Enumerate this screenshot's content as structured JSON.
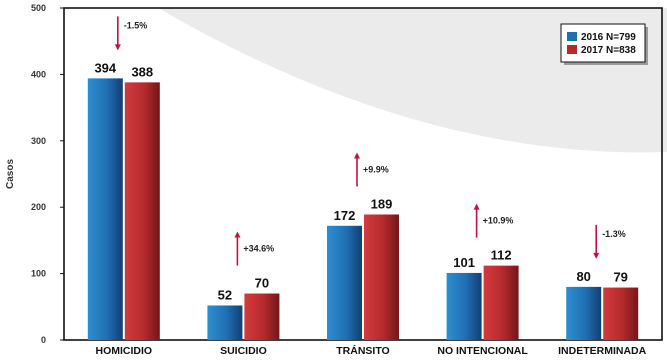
{
  "chart_data": {
    "type": "bar",
    "ylabel": "Casos",
    "ylim": [
      0,
      500
    ],
    "yticks": [
      0,
      100,
      200,
      300,
      400,
      500
    ],
    "categories": [
      "HOMICIDIO",
      "SUICIDIO",
      "TRÁNSITO",
      "NO INTENCIONAL",
      "INDETERMINADA"
    ],
    "series": [
      {
        "name": "2016 N=799",
        "values": [
          394,
          52,
          172,
          101,
          80
        ],
        "color": "#1f6fb3"
      },
      {
        "name": "2017 N=838",
        "values": [
          388,
          70,
          189,
          112,
          79
        ],
        "color": "#b52a2d"
      }
    ],
    "changes": [
      "-1.5%",
      "+34.6%",
      "+9.9%",
      "+10.9%",
      "-1.3%"
    ],
    "change_direction": [
      "down",
      "up",
      "up",
      "up",
      "down"
    ],
    "legend_position": "top-right",
    "arrow_color": "#c8103e",
    "grid": false
  }
}
